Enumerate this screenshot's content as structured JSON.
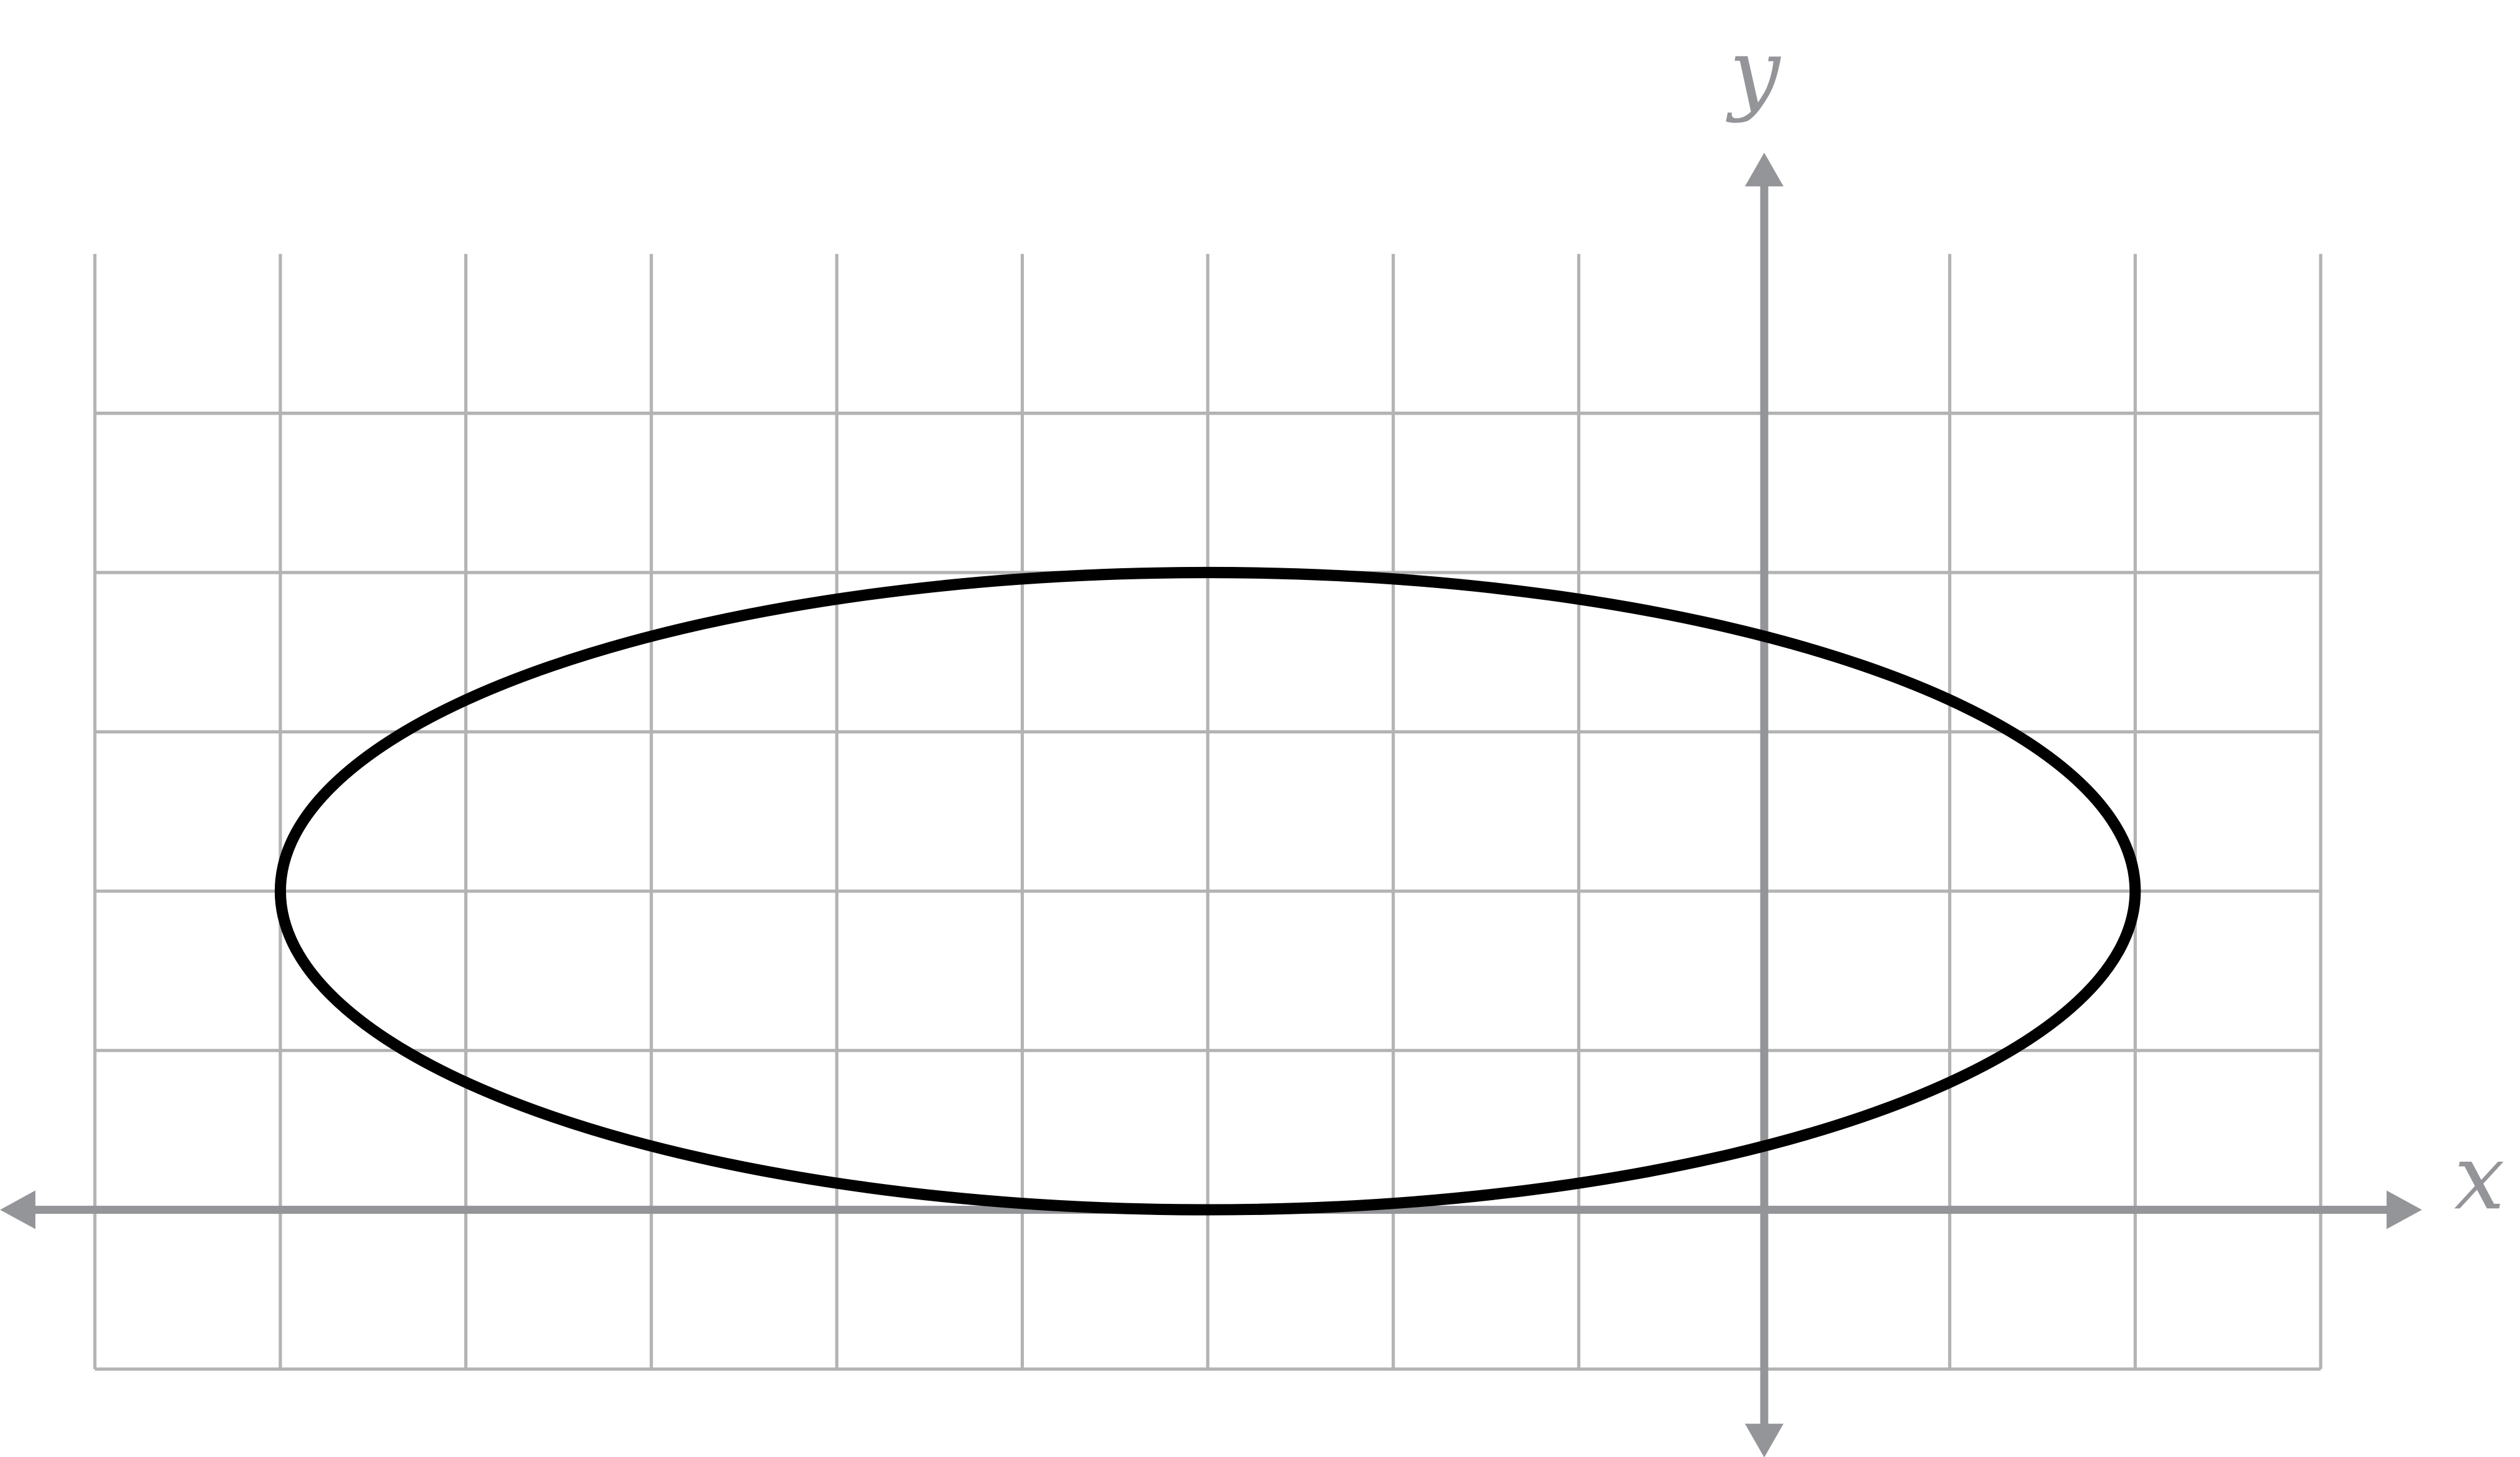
{
  "chart_data": {
    "type": "line",
    "title": "",
    "xlabel": "x",
    "ylabel": "y",
    "xlim": [
      -9,
      3
    ],
    "ylim": [
      -1,
      6
    ],
    "grid": true,
    "grid_step": 1,
    "tick_labels": false,
    "series": [
      {
        "kind": "ellipse",
        "center": [
          -3,
          2
        ],
        "semi_axis_x": 5,
        "semi_axis_y": 2,
        "color": "#000000"
      }
    ]
  },
  "colors": {
    "grid": "#b3b3b3",
    "axis": "#939598",
    "curve": "#000000"
  }
}
